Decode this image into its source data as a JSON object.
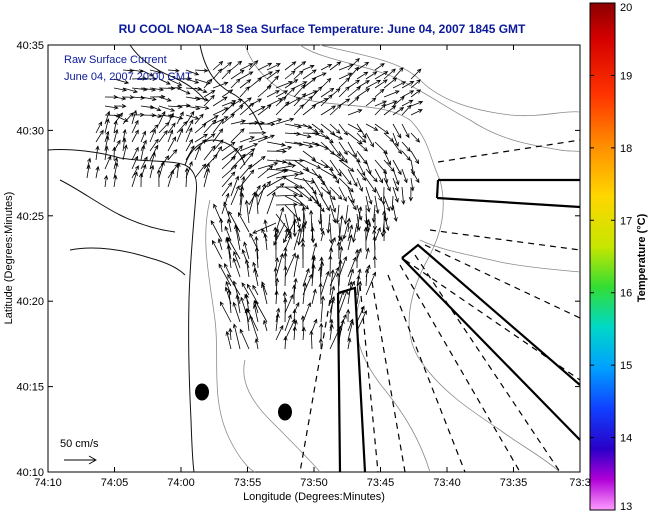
{
  "chart_data": {
    "type": "vector_field_map",
    "title": "RU COOL   NOAA−18  Sea Surface Temperature:  June 04, 2007 1845 GMT",
    "legend_lines": [
      "Raw Surface Current",
      "June 04, 2007 20:00 GMT"
    ],
    "xlabel": "Longitude (Degrees:Minutes)",
    "ylabel": "Latitude (Degrees:Minutes)",
    "x_ticks": [
      "74:10",
      "74:05",
      "74:00",
      "73:55",
      "73:50",
      "73:45",
      "73:40",
      "73:35",
      "73:3"
    ],
    "y_ticks": [
      "40:35",
      "40:30",
      "40:25",
      "40:20",
      "40:15",
      "40:10"
    ],
    "xlim_minutes_west": [
      10,
      30
    ],
    "ylim_minutes_north": [
      10,
      35
    ],
    "scale_label": "50 cm/s",
    "colorbar": {
      "label": "Temperature (°C)",
      "ticks": [
        "20",
        "19",
        "18",
        "17",
        "16",
        "15",
        "14",
        "13"
      ],
      "range": [
        13,
        20
      ]
    },
    "vector_field_region": "centered near 73:54 W, 40:27 N, spreading over 74:06–73:47 W and 40:18–40:33 N",
    "markers": [
      {
        "label": "",
        "lon": "73:59",
        "lat": "40:14.8"
      },
      {
        "label": "",
        "lon": "73:52.5",
        "lat": "40:13.7"
      }
    ]
  }
}
